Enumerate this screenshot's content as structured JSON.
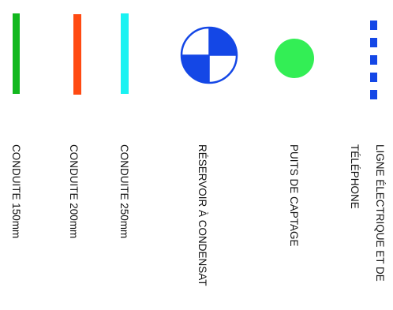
{
  "symbols": {
    "pipe_150_color": "#12b81e",
    "pipe_200_color": "#ff4a12",
    "pipe_250_color": "#19f2f2",
    "reservoir_color": "#1447e6",
    "well_color": "#33ee55",
    "line_color": "#1447e6"
  },
  "labels": {
    "pipe_150": "CONDUITE 150mm",
    "pipe_200": "CONDUITE 200mm",
    "pipe_250": "CONDUITE 250mm",
    "reservoir": "RÉSERVOIR À CONDENSAT",
    "well": "PUITS DE CAPTAGE",
    "line": "LIGNE ÉLECTRIQUE ET DE TÉLÉPHONE"
  }
}
